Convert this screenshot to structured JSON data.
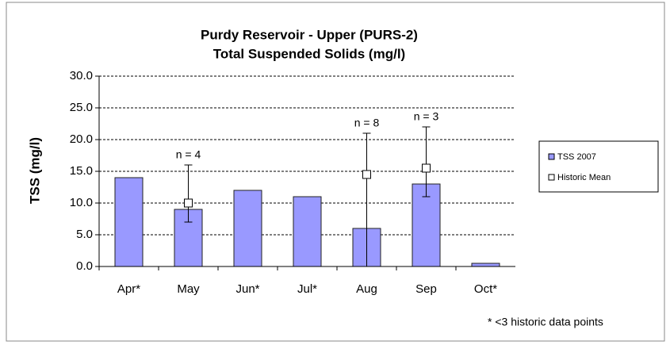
{
  "chart_data": {
    "type": "bar",
    "title": "Purdy Reservoir - Upper (PURS-2)",
    "subtitle": "Total Suspended Solids  (mg/l)",
    "y_label": "TSS (mg/l)",
    "categories": [
      "Apr*",
      "May",
      "Jun*",
      "Jul*",
      "Aug",
      "Sep",
      "Oct*"
    ],
    "series": [
      {
        "name": "TSS 2007",
        "color": "#9999ff",
        "values": [
          14,
          9,
          12,
          11,
          6,
          13,
          0.5
        ]
      },
      {
        "name": "Historic Mean",
        "color": "#ffffff",
        "values": [
          null,
          10,
          null,
          null,
          14.5,
          15.5,
          null
        ],
        "low": [
          null,
          7,
          null,
          null,
          0,
          11,
          null
        ],
        "high": [
          null,
          16,
          null,
          null,
          21,
          22,
          null
        ]
      }
    ],
    "annotations": [
      {
        "category": "May",
        "text": "n = 4"
      },
      {
        "category": "Aug",
        "text": "n = 8"
      },
      {
        "category": "Sep",
        "text": "n = 3"
      }
    ],
    "footnote": "* <3 historic data points",
    "ylim": [
      0,
      30
    ],
    "yticks": [
      {
        "value": 0,
        "label": "0.0"
      },
      {
        "value": 5,
        "label": "5.0"
      },
      {
        "value": 10,
        "label": "10.0"
      },
      {
        "value": 15,
        "label": "15.0"
      },
      {
        "value": 20,
        "label": "20.0"
      },
      {
        "value": 25,
        "label": "25.0"
      },
      {
        "value": 30,
        "label": "30.0"
      }
    ],
    "grid": true,
    "legend": "right"
  }
}
